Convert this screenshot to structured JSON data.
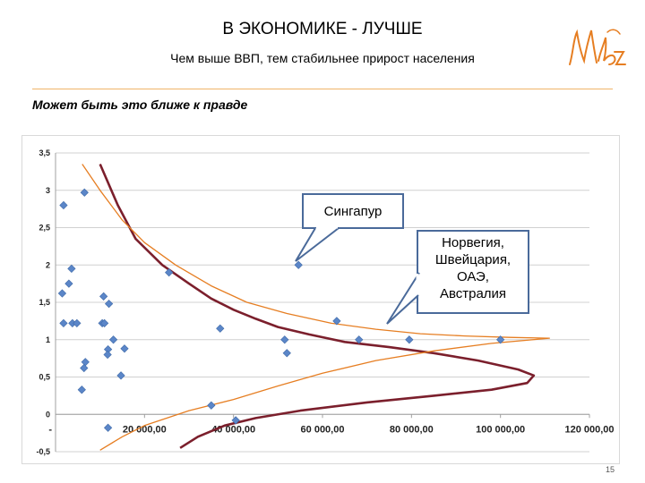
{
  "header": {
    "title": "В ЭКОНОМИКЕ - ЛУЧШЕ",
    "subtitle": "Чем выше ВВП, тем стабильнее прирост населения",
    "logo_icon": "signature-logo-icon"
  },
  "section_heading": "Может быть это ближе к правде",
  "callouts": {
    "singapore": "Сингапур",
    "group": [
      "Норвегия,",
      "Швейцария,",
      "ОАЭ,",
      "Австралия"
    ]
  },
  "page_number": "15",
  "chart_data": {
    "type": "scatter",
    "title": "",
    "xlabel": "",
    "ylabel": "",
    "xlim": [
      0,
      120000
    ],
    "ylim": [
      -0.5,
      3.5
    ],
    "x_ticks": [
      "-",
      "20 000,00",
      "40 000,00",
      "60 000,00",
      "80 000,00",
      "100 000,00",
      "120 000,00"
    ],
    "y_ticks": [
      "-0,5",
      "0",
      "0,5",
      "1",
      "1,5",
      "2",
      "2,5",
      "3",
      "3,5"
    ],
    "grid": true,
    "legend": "none",
    "series": [
      {
        "type": "scatter",
        "color": "#5b86c8",
        "points": [
          [
            1800,
            2.8
          ],
          [
            6500,
            2.97
          ],
          [
            3600,
            1.95
          ],
          [
            3000,
            1.75
          ],
          [
            1500,
            1.62
          ],
          [
            1800,
            1.22
          ],
          [
            3800,
            1.22
          ],
          [
            4800,
            1.22
          ],
          [
            10800,
            1.58
          ],
          [
            12000,
            1.48
          ],
          [
            10500,
            1.22
          ],
          [
            11000,
            1.22
          ],
          [
            13000,
            1.0
          ],
          [
            15500,
            0.88
          ],
          [
            11800,
            0.87
          ],
          [
            11700,
            0.8
          ],
          [
            6700,
            0.7
          ],
          [
            6400,
            0.62
          ],
          [
            14700,
            0.52
          ],
          [
            5900,
            0.33
          ],
          [
            11800,
            -0.18
          ],
          [
            25500,
            1.9
          ],
          [
            37000,
            1.15
          ],
          [
            35000,
            0.12
          ],
          [
            40500,
            -0.08
          ],
          [
            51500,
            1.0
          ],
          [
            52000,
            0.82
          ],
          [
            54600,
            2.0
          ],
          [
            63200,
            1.25
          ],
          [
            68200,
            1.0
          ],
          [
            79500,
            1.0
          ],
          [
            100000,
            1.0
          ]
        ]
      },
      {
        "type": "line",
        "color": "#7b1f2c",
        "points": [
          [
            10000,
            3.35
          ],
          [
            14000,
            2.8
          ],
          [
            18000,
            2.35
          ],
          [
            24000,
            2.0
          ],
          [
            30000,
            1.75
          ],
          [
            35000,
            1.55
          ],
          [
            40000,
            1.4
          ],
          [
            45000,
            1.28
          ],
          [
            50000,
            1.17
          ],
          [
            57000,
            1.07
          ],
          [
            65000,
            0.97
          ],
          [
            75000,
            0.9
          ],
          [
            85000,
            0.82
          ],
          [
            95000,
            0.72
          ],
          [
            104000,
            0.6
          ],
          [
            107500,
            0.52
          ],
          [
            106000,
            0.42
          ],
          [
            98000,
            0.33
          ],
          [
            85000,
            0.25
          ],
          [
            70000,
            0.16
          ],
          [
            55000,
            0.05
          ],
          [
            45000,
            -0.05
          ],
          [
            38000,
            -0.15
          ],
          [
            32000,
            -0.3
          ],
          [
            28000,
            -0.45
          ]
        ]
      },
      {
        "type": "line",
        "color": "#e67e22",
        "points": [
          [
            6000,
            3.35
          ],
          [
            10000,
            3.0
          ],
          [
            15000,
            2.6
          ],
          [
            20000,
            2.3
          ],
          [
            27000,
            2.0
          ],
          [
            35000,
            1.72
          ],
          [
            43000,
            1.5
          ],
          [
            52000,
            1.35
          ],
          [
            62000,
            1.22
          ],
          [
            72000,
            1.14
          ],
          [
            82000,
            1.08
          ],
          [
            92000,
            1.05
          ],
          [
            102000,
            1.03
          ],
          [
            111000,
            1.02
          ],
          [
            98000,
            0.95
          ],
          [
            85000,
            0.85
          ],
          [
            72000,
            0.72
          ],
          [
            60000,
            0.55
          ],
          [
            50000,
            0.38
          ],
          [
            40000,
            0.2
          ],
          [
            30000,
            0.05
          ],
          [
            20000,
            -0.15
          ],
          [
            15000,
            -0.3
          ],
          [
            10000,
            -0.48
          ]
        ]
      }
    ]
  }
}
